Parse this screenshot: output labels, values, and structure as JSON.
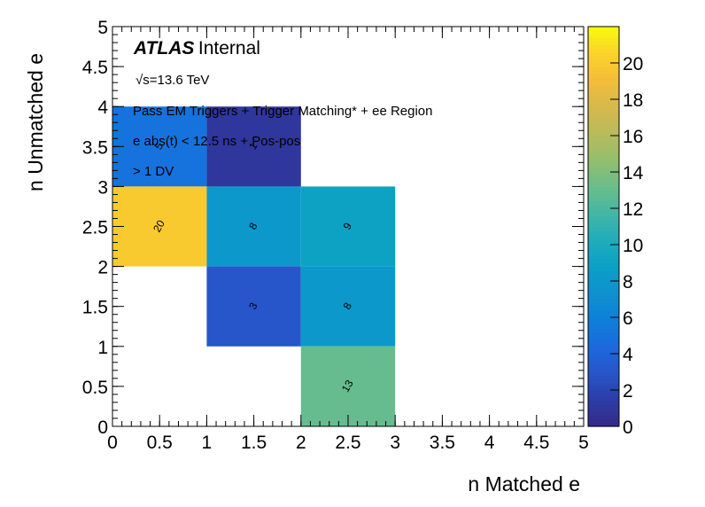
{
  "chart_data": {
    "type": "heatmap",
    "xlabel": "n Matched e",
    "ylabel": "n Unmatched e",
    "xlim": [
      0,
      5
    ],
    "ylim": [
      0,
      5
    ],
    "x_ticks": [
      "0",
      "0.5",
      "1",
      "1.5",
      "2",
      "2.5",
      "3",
      "3.5",
      "4",
      "4.5",
      "5"
    ],
    "y_ticks": [
      "0",
      "0.5",
      "1",
      "1.5",
      "2",
      "2.5",
      "3",
      "3.5",
      "4",
      "4.5",
      "5"
    ],
    "bin_edges": [
      0,
      1,
      2,
      3,
      4,
      5
    ],
    "cells": [
      {
        "x": 0,
        "y": 3,
        "value": 5,
        "label": "5"
      },
      {
        "x": 1,
        "y": 3,
        "value": 1,
        "label": "1"
      },
      {
        "x": 0,
        "y": 2,
        "value": 20,
        "label": "20"
      },
      {
        "x": 1,
        "y": 2,
        "value": 8,
        "label": "8"
      },
      {
        "x": 2,
        "y": 2,
        "value": 9,
        "label": "9"
      },
      {
        "x": 1,
        "y": 1,
        "value": 3,
        "label": "3"
      },
      {
        "x": 2,
        "y": 1,
        "value": 8,
        "label": "8"
      },
      {
        "x": 2,
        "y": 0,
        "value": 13,
        "label": "13"
      }
    ],
    "colorbar": {
      "min": 0,
      "max": 22,
      "ticks": [
        "0",
        "2",
        "4",
        "6",
        "8",
        "10",
        "12",
        "14",
        "16",
        "18",
        "20"
      ],
      "palette": [
        "#352a87",
        "#2c3ca6",
        "#2855c9",
        "#1c69de",
        "#0e7fd8",
        "#0f91cf",
        "#0aa0c6",
        "#20acba",
        "#44b6a5",
        "#6bbd8a",
        "#93be6d",
        "#b8bb5c",
        "#d6b94b",
        "#f3bd3a",
        "#fbd22a",
        "#f9fb0e"
      ]
    }
  },
  "annotations": {
    "atlas": "ATLAS",
    "internal": "Internal",
    "energy": "√s=13.6 TeV",
    "selection1": "Pass EM Triggers + Trigger Matching* + ee Region",
    "selection2": "e abs(t) < 12.5 ns + Pos-pos",
    "selection3": "> 1 DV"
  }
}
